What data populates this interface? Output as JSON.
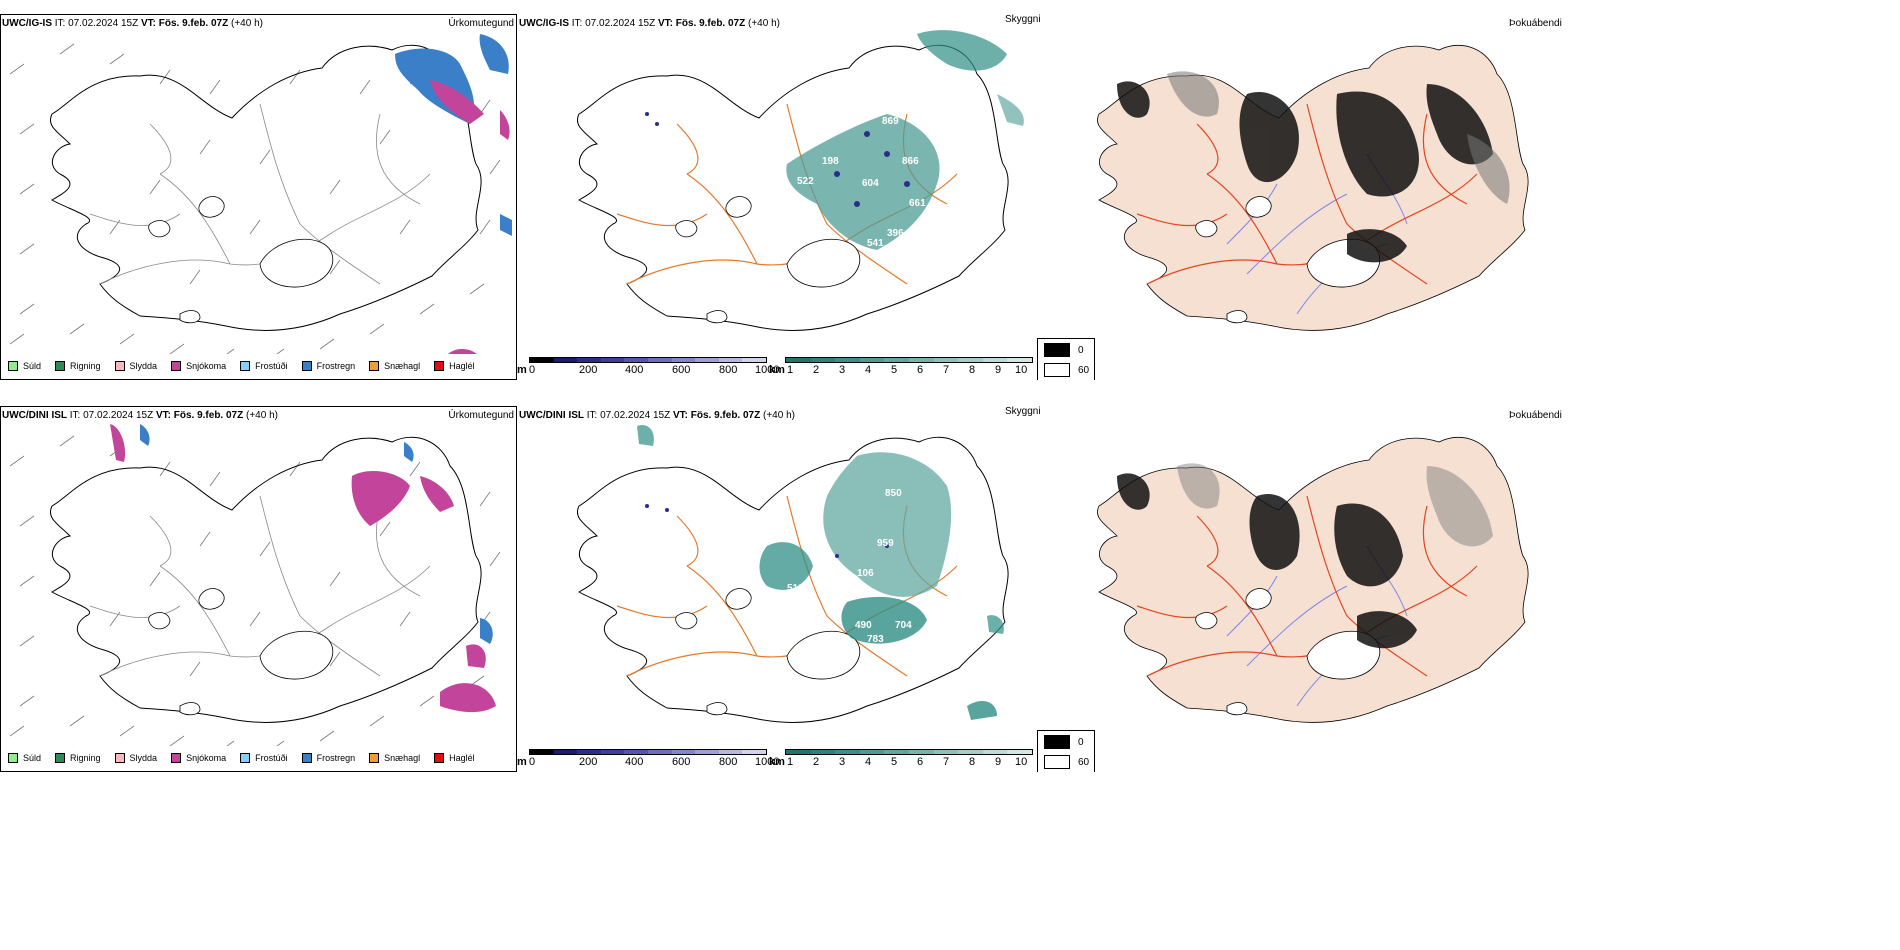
{
  "colors": {
    "drizzle": "#90ee90",
    "rain": "#2e8b57",
    "sleet": "#ffb6c1",
    "snow": "#c2449b",
    "freezing_drizzle": "#87cefa",
    "freezing_rain": "#3b7fc8",
    "snow_pellets": "#f0a030",
    "hail": "#dd1111",
    "land_fog": "#f5e0d2",
    "road": "#e67a2c",
    "road_fog": "#e4451e",
    "river": "#7b88ee",
    "cloud_teal": "#2f8f85"
  },
  "rows": [
    {
      "id": "ig",
      "header": {
        "model": "UWC/IG-IS",
        "it_label": "IT:",
        "it": "07.02.2024 15Z",
        "vt_label": "VT:",
        "vt": "Fös. 9.feb. 07Z",
        "lead": "(+40 h)"
      },
      "precip": {
        "title": "Úrkomutegund"
      },
      "vis": {
        "title": "Skyggni",
        "labels": [
          "869",
          "866",
          "198",
          "522",
          "604",
          "661",
          "541",
          "396"
        ]
      },
      "fog": {
        "title": "Þokuábendi"
      }
    },
    {
      "id": "dini",
      "header": {
        "model": "UWC/DINI ISL",
        "it_label": "IT:",
        "it": "07.02.2024 15Z",
        "vt_label": "VT:",
        "vt": "Fös. 9.feb. 07Z",
        "lead": "(+40 h)"
      },
      "precip": {
        "title": "Úrkomutegund"
      },
      "vis": {
        "title": "Skyggni",
        "labels": [
          "850",
          "959",
          "106",
          "510",
          "490",
          "704",
          "783"
        ]
      },
      "fog": {
        "title": "Þokuábendi"
      }
    }
  ],
  "precip_legend": [
    {
      "label": "Súld",
      "color_key": "drizzle"
    },
    {
      "label": "Rigning",
      "color_key": "rain"
    },
    {
      "label": "Slydda",
      "color_key": "sleet"
    },
    {
      "label": "Snjókoma",
      "color_key": "snow"
    },
    {
      "label": "Frostúði",
      "color_key": "freezing_drizzle"
    },
    {
      "label": "Frostregn",
      "color_key": "freezing_rain"
    },
    {
      "label": "Snæhagl",
      "color_key": "snow_pellets"
    },
    {
      "label": "Haglél",
      "color_key": "hail"
    }
  ],
  "vis_scale_m": {
    "unit": "m",
    "ticks": [
      "0",
      "200",
      "400",
      "600",
      "800",
      "1000"
    ],
    "colors": [
      "#000000",
      "#1a1a6e",
      "#2c2c8a",
      "#3f3f9e",
      "#5555b0",
      "#6d6dbe",
      "#8585c9",
      "#9e9ed4",
      "#b8b8df",
      "#d2d2ea"
    ]
  },
  "vis_scale_km": {
    "unit": "km",
    "ticks": [
      "1",
      "2",
      "3",
      "4",
      "5",
      "6",
      "7",
      "8",
      "9",
      "10"
    ],
    "colors": [
      "#1e766f",
      "#2d837c",
      "#3c9089",
      "#4f9c95",
      "#62a8a1",
      "#77b4ae",
      "#8dc1bb",
      "#a4cdc8",
      "#bcdad6",
      "#d3e7e4"
    ]
  },
  "fog_legend": [
    {
      "label": "0",
      "color": "#000000"
    },
    {
      "label": "60",
      "color": "#ffffff"
    }
  ]
}
